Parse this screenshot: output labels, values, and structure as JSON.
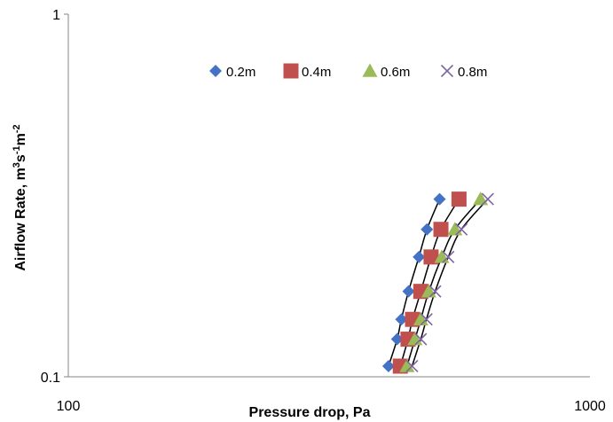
{
  "chart_data": {
    "type": "scatter",
    "title": "",
    "xlabel": "Pressure drop, Pa",
    "ylabel_parts": [
      "Airflow Rate, m",
      "3",
      "s",
      "-1",
      "m",
      "-2"
    ],
    "x_scale": "log",
    "y_scale": "log",
    "xlim": [
      100,
      1000
    ],
    "ylim": [
      0.1,
      1
    ],
    "x_ticks": [
      {
        "value": 100,
        "label": "100"
      },
      {
        "value": 1000,
        "label": "1000"
      }
    ],
    "y_ticks": [
      {
        "value": 0.1,
        "label": "0.1"
      },
      {
        "value": 1,
        "label": "1"
      }
    ],
    "grid": false,
    "legend_position": "top",
    "series": [
      {
        "name": "0.2m",
        "marker": "diamond",
        "color": "#4472C4",
        "x": [
          411,
          427,
          435,
          449,
          470,
          487,
          515
        ],
        "y": [
          0.107,
          0.127,
          0.144,
          0.172,
          0.214,
          0.255,
          0.309
        ]
      },
      {
        "name": "0.4m",
        "marker": "square",
        "color": "#C0504D",
        "x": [
          433,
          448,
          457,
          474,
          496,
          518,
          561
        ],
        "y": [
          0.107,
          0.127,
          0.144,
          0.172,
          0.214,
          0.255,
          0.309
        ]
      },
      {
        "name": "0.6m",
        "marker": "triangle",
        "color": "#9BBB59",
        "x": [
          446,
          462,
          474,
          491,
          520,
          551,
          617
        ],
        "y": [
          0.107,
          0.127,
          0.144,
          0.172,
          0.214,
          0.255,
          0.309
        ]
      },
      {
        "name": "0.8m",
        "marker": "x",
        "color": "#8064A2",
        "x": [
          456,
          474,
          486,
          505,
          535,
          567,
          637
        ],
        "y": [
          0.107,
          0.127,
          0.144,
          0.172,
          0.214,
          0.255,
          0.309
        ]
      }
    ]
  }
}
